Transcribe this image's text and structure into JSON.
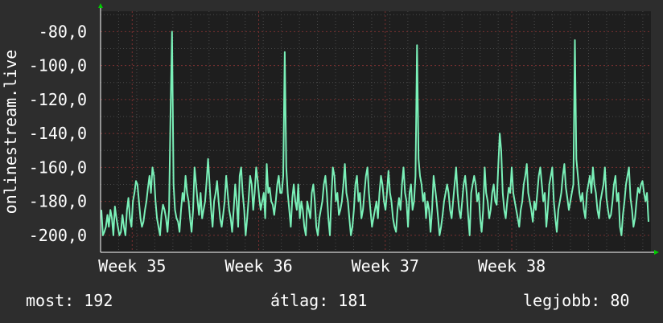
{
  "chart_data": {
    "type": "line",
    "ylabel": "onlinestream.live",
    "ylim": [
      -210,
      -68
    ],
    "y_ticks": [
      -80,
      -100,
      -120,
      -140,
      -160,
      -180,
      -200
    ],
    "y_tick_labels": [
      "-80,0",
      "-100,0",
      "-120,0",
      "-140,0",
      "-160,0",
      "-180,0",
      "-200,0"
    ],
    "x_ticks": [
      "Week 35",
      "Week 36",
      "Week 37",
      "Week 38"
    ],
    "x_tick_positions": [
      0.25,
      1.25,
      2.25,
      3.25
    ],
    "x_range": [
      0,
      4.35
    ],
    "grid": true,
    "colors": {
      "line": "#7af0b8",
      "plot_bg": "#1e1e1e",
      "page_bg": "#2d2d2d",
      "grid": "#4a4a4a",
      "major_grid": "#7a3030",
      "arrow": "#00cc00",
      "text": "#ffffff"
    },
    "series": [
      {
        "values": [
          -185,
          -200,
          -198,
          -195,
          -188,
          -195,
          -185,
          -190,
          -200,
          -183,
          -190,
          -195,
          -200,
          -198,
          -188,
          -195,
          -200,
          -185,
          -178,
          -190,
          -195,
          -180,
          -175,
          -168,
          -170,
          -180,
          -190,
          -195,
          -192,
          -185,
          -180,
          -172,
          -165,
          -175,
          -160,
          -165,
          -180,
          -190,
          -195,
          -200,
          -188,
          -182,
          -185,
          -190,
          -198,
          -185,
          -130,
          -80,
          -170,
          -185,
          -190,
          -192,
          -198,
          -185,
          -175,
          -180,
          -165,
          -175,
          -180,
          -190,
          -198,
          -185,
          -160,
          -170,
          -180,
          -188,
          -175,
          -190,
          -185,
          -180,
          -168,
          -155,
          -170,
          -185,
          -195,
          -180,
          -175,
          -168,
          -180,
          -190,
          -195,
          -188,
          -180,
          -165,
          -175,
          -185,
          -190,
          -198,
          -185,
          -170,
          -180,
          -195,
          -165,
          -160,
          -175,
          -185,
          -200,
          -190,
          -178,
          -165,
          -170,
          -185,
          -175,
          -160,
          -168,
          -178,
          -185,
          -180,
          -175,
          -190,
          -158,
          -175,
          -172,
          -180,
          -182,
          -188,
          -180,
          -170,
          -165,
          -175,
          -175,
          -165,
          -92,
          -160,
          -175,
          -185,
          -195,
          -178,
          -170,
          -180,
          -185,
          -170,
          -190,
          -180,
          -185,
          -195,
          -200,
          -180,
          -185,
          -190,
          -175,
          -170,
          -180,
          -195,
          -200,
          -190,
          -185,
          -180,
          -170,
          -165,
          -175,
          -190,
          -200,
          -178,
          -160,
          -165,
          -180,
          -175,
          -188,
          -185,
          -180,
          -170,
          -158,
          -175,
          -180,
          -190,
          -200,
          -195,
          -185,
          -170,
          -165,
          -180,
          -175,
          -190,
          -185,
          -175,
          -165,
          -160,
          -175,
          -185,
          -195,
          -190,
          -185,
          -180,
          -190,
          -175,
          -165,
          -170,
          -180,
          -185,
          -175,
          -162,
          -175,
          -180,
          -190,
          -195,
          -198,
          -185,
          -178,
          -185,
          -170,
          -160,
          -175,
          -180,
          -195,
          -175,
          -170,
          -185,
          -180,
          -165,
          -88,
          -155,
          -165,
          -170,
          -180,
          -175,
          -190,
          -180,
          -185,
          -198,
          -185,
          -165,
          -172,
          -180,
          -190,
          -200,
          -195,
          -188,
          -180,
          -175,
          -170,
          -175,
          -185,
          -190,
          -180,
          -170,
          -160,
          -175,
          -185,
          -190,
          -180,
          -170,
          -165,
          -175,
          -188,
          -200,
          -175,
          -170,
          -165,
          -170,
          -180,
          -175,
          -190,
          -198,
          -185,
          -160,
          -175,
          -180,
          -190,
          -185,
          -175,
          -170,
          -180,
          -182,
          -160,
          -140,
          -150,
          -175,
          -185,
          -190,
          -180,
          -172,
          -175,
          -160,
          -175,
          -180,
          -185,
          -190,
          -195,
          -185,
          -180,
          -170,
          -165,
          -158,
          -175,
          -180,
          -185,
          -192,
          -180,
          -185,
          -175,
          -165,
          -160,
          -170,
          -180,
          -175,
          -195,
          -185,
          -170,
          -165,
          -160,
          -180,
          -190,
          -198,
          -185,
          -180,
          -175,
          -165,
          -158,
          -172,
          -178,
          -185,
          -180,
          -175,
          -170,
          -85,
          -155,
          -165,
          -175,
          -180,
          -175,
          -185,
          -190,
          -175,
          -170,
          -165,
          -175,
          -160,
          -170,
          -175,
          -185,
          -190,
          -180,
          -175,
          -170,
          -160,
          -178,
          -185,
          -190,
          -188,
          -180,
          -170,
          -165,
          -180,
          -175,
          -195,
          -200,
          -188,
          -180,
          -170,
          -165,
          -160,
          -178,
          -185,
          -195,
          -190,
          -180,
          -172,
          -175,
          -170,
          -168,
          -175,
          -180,
          -175,
          -192
        ]
      }
    ]
  },
  "footer": {
    "current_label": "most:",
    "current_value": "192",
    "average_label": "átlag:",
    "average_value": "181",
    "best_label": "legjobb:",
    "best_value": "80"
  }
}
